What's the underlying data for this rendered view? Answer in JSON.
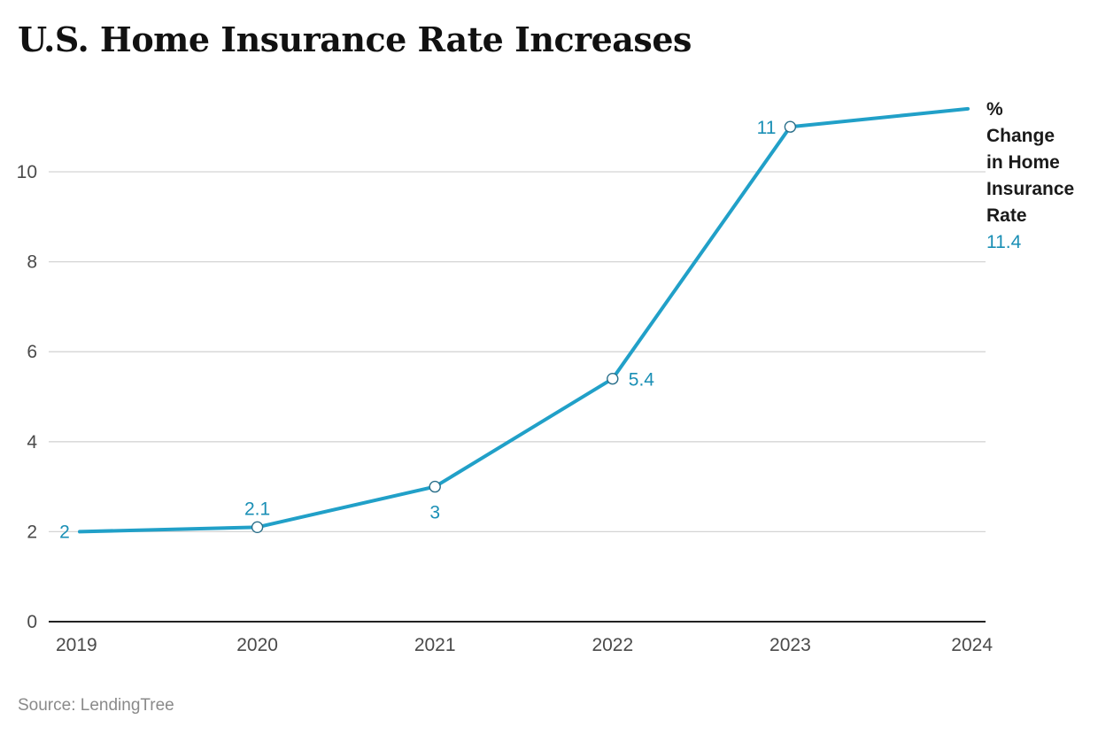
{
  "title": "U.S. Home Insurance Rate Increases",
  "source": "Source: LendingTree",
  "colors": {
    "line": "#21a0c8",
    "label": "#1a8fb5",
    "grid": "#d4d4d4",
    "axis": "#222222"
  },
  "chart_data": {
    "type": "line",
    "title": "U.S. Home Insurance Rate Increases",
    "x": [
      "2019",
      "2020",
      "2021",
      "2022",
      "2023",
      "2024"
    ],
    "series": [
      {
        "name": "% Change in Home Insurance Rate",
        "name_lines": [
          "%",
          "Change",
          "in Home",
          "Insurance",
          "Rate"
        ],
        "values": [
          2,
          2.1,
          3,
          5.4,
          11,
          11.4
        ],
        "data_labels": [
          "2",
          "2.1",
          "3",
          "5.4",
          "11",
          "11.4"
        ]
      }
    ],
    "yticks": [
      "0",
      "2",
      "4",
      "6",
      "8",
      "10"
    ],
    "ylim": [
      0,
      11.4
    ],
    "grid": true,
    "legend": "right-end-label",
    "xlabel": "",
    "ylabel": ""
  }
}
